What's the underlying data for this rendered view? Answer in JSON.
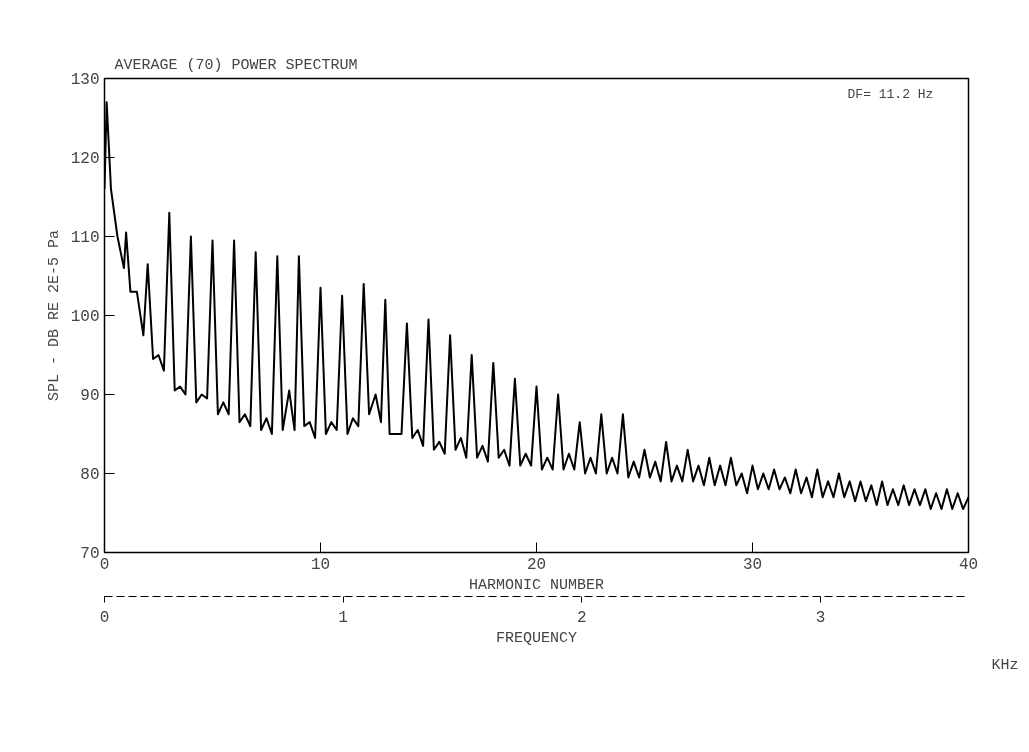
{
  "chart_data": {
    "type": "line",
    "title": "AVERAGE (70) POWER SPECTRUM",
    "xlabel": "HARMONIC NUMBER",
    "ylabel": "SPL - DB RE 2E-5 Pa",
    "x2label": "FREQUENCY",
    "annotations": [
      "DF= 11.2 Hz",
      "KHz"
    ],
    "xlim": [
      0,
      40
    ],
    "xticks": [
      0,
      10,
      20,
      30,
      40
    ],
    "ylim": [
      70,
      130
    ],
    "yticks": [
      70,
      80,
      90,
      100,
      110,
      120,
      130
    ],
    "x2lim": [
      0,
      3.62
    ],
    "x2ticks": [
      0,
      1,
      2,
      3
    ],
    "grid": false,
    "marker": "none",
    "line_style": "solid",
    "series": [
      {
        "color": "#000000",
        "x": [
          0,
          0.1,
          0.3,
          0.6,
          0.9,
          1,
          1.2,
          1.5,
          1.8,
          2,
          2.25,
          2.5,
          2.75,
          3,
          3.25,
          3.5,
          3.75,
          4,
          4.25,
          4.5,
          4.75,
          5,
          5.25,
          5.5,
          5.75,
          6,
          6.25,
          6.5,
          6.75,
          7,
          7.25,
          7.5,
          7.75,
          8,
          8.25,
          8.55,
          8.8,
          9,
          9.25,
          9.5,
          9.75,
          10,
          10.25,
          10.5,
          10.75,
          11,
          11.25,
          11.5,
          11.75,
          12,
          12.25,
          12.55,
          12.8,
          13,
          13.2,
          13.5,
          13.75,
          14,
          14.25,
          14.5,
          14.75,
          15,
          15.25,
          15.5,
          15.75,
          16,
          16.25,
          16.5,
          16.75,
          17,
          17.25,
          17.5,
          17.75,
          18,
          18.25,
          18.5,
          18.75,
          19,
          19.25,
          19.5,
          19.75,
          20,
          20.25,
          20.5,
          20.75,
          21,
          21.25,
          21.5,
          21.75,
          22,
          22.25,
          22.5,
          22.75,
          23,
          23.25,
          23.5,
          23.75,
          24,
          24.25,
          24.5,
          24.75,
          25,
          25.25,
          25.5,
          25.75,
          26,
          26.25,
          26.5,
          26.75,
          27,
          27.25,
          27.5,
          27.75,
          28,
          28.25,
          28.5,
          28.75,
          29,
          29.25,
          29.5,
          29.75,
          30,
          30.25,
          30.5,
          30.75,
          31,
          31.25,
          31.5,
          31.75,
          32,
          32.25,
          32.5,
          32.75,
          33,
          33.25,
          33.5,
          33.75,
          34,
          34.25,
          34.5,
          34.75,
          35,
          35.25,
          35.5,
          35.75,
          36,
          36.25,
          36.5,
          36.75,
          37,
          37.25,
          37.5,
          37.75,
          38,
          38.25,
          38.5,
          38.75,
          39,
          39.25,
          39.5,
          39.75,
          40
        ],
        "values": [
          116,
          127,
          116,
          110,
          106,
          110.5,
          103,
          103,
          97.5,
          106.5,
          94.5,
          95,
          93,
          113,
          90.5,
          91,
          90,
          110,
          89,
          90,
          89.5,
          109.5,
          87.5,
          89,
          87.5,
          109.5,
          86.5,
          87.5,
          86,
          108,
          85.5,
          87,
          85,
          107.5,
          85.5,
          90.5,
          85.5,
          107.5,
          86,
          86.5,
          84.5,
          103.5,
          85,
          86.5,
          85.5,
          102.5,
          85,
          87,
          86,
          104,
          87.5,
          90,
          86.5,
          102,
          85,
          85,
          85,
          99,
          84.5,
          85.5,
          83.5,
          99.5,
          83,
          84,
          82.5,
          97.5,
          83,
          84.5,
          82,
          95,
          82,
          83.5,
          81.5,
          94,
          82,
          83,
          81,
          92,
          81,
          82.5,
          81,
          91,
          80.5,
          82,
          80.5,
          90,
          80.5,
          82.5,
          80.5,
          86.5,
          80,
          82,
          80,
          87.5,
          80,
          82,
          80,
          87.5,
          79.5,
          81.5,
          79.5,
          83,
          79.5,
          81.5,
          79,
          84,
          79,
          81,
          79,
          83,
          79,
          81,
          78.5,
          82,
          78.5,
          81,
          78.5,
          82,
          78.5,
          80,
          77.5,
          81,
          78,
          80,
          78,
          80.5,
          78,
          79.5,
          77.5,
          80.5,
          77.5,
          79.5,
          77,
          80.5,
          77,
          79,
          77,
          80,
          77,
          79,
          76.5,
          79,
          76.5,
          78.5,
          76,
          79,
          76,
          78,
          76,
          78.5,
          76,
          78,
          76,
          78,
          75.5,
          77.5,
          75.5,
          78,
          75.5,
          77.5,
          75.5,
          77
        ]
      }
    ]
  }
}
